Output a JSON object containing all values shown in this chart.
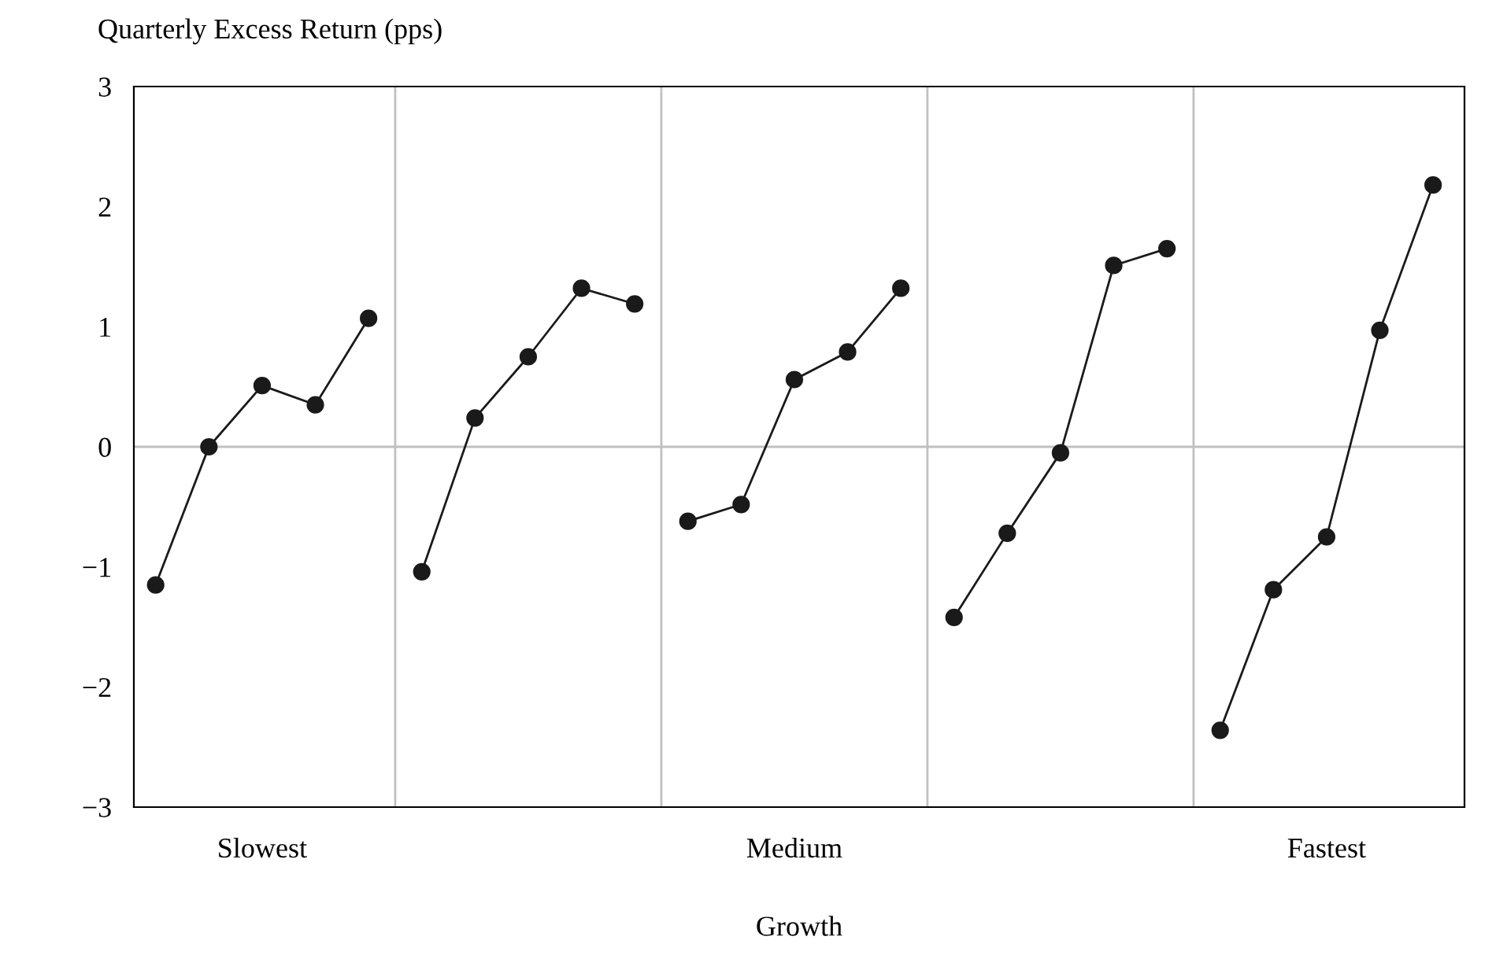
{
  "chart_data": {
    "type": "line",
    "ylabel": "Quarterly Excess Return (pps)",
    "xlabel": "Growth",
    "categories": [
      null,
      null,
      "Slowest",
      null,
      null,
      null,
      null,
      null,
      null,
      null,
      null,
      null,
      "Medium",
      null,
      null,
      null,
      null,
      null,
      null,
      null,
      null,
      null,
      "Fastest",
      null,
      null
    ],
    "ylim": [
      -3,
      3
    ],
    "yticks": [
      {
        "value": -3,
        "label": "−3"
      },
      {
        "value": -2,
        "label": "−2"
      },
      {
        "value": -1,
        "label": "−1"
      },
      0,
      1,
      2,
      3
    ],
    "series": [
      {
        "color": "#1a1a1a",
        "values": [
          -1.15,
          0.0,
          0.51,
          0.35,
          1.07,
          null,
          null,
          null,
          null,
          null,
          null,
          null,
          null,
          null,
          null,
          null,
          null,
          null,
          null,
          null,
          null,
          null,
          null,
          null,
          null
        ]
      },
      {
        "color": "#1a1a1a",
        "values": [
          null,
          null,
          null,
          null,
          null,
          -1.04,
          0.24,
          0.75,
          1.32,
          1.19,
          null,
          null,
          null,
          null,
          null,
          null,
          null,
          null,
          null,
          null,
          null,
          null,
          null,
          null,
          null
        ]
      },
      {
        "color": "#1a1a1a",
        "values": [
          null,
          null,
          null,
          null,
          null,
          null,
          null,
          null,
          null,
          null,
          -0.62,
          -0.48,
          0.56,
          0.79,
          1.32,
          null,
          null,
          null,
          null,
          null,
          null,
          null,
          null,
          null,
          null
        ]
      },
      {
        "color": "#1a1a1a",
        "values": [
          null,
          null,
          null,
          null,
          null,
          null,
          null,
          null,
          null,
          null,
          null,
          null,
          null,
          null,
          null,
          -1.42,
          -0.72,
          -0.05,
          1.51,
          1.65,
          null,
          null,
          null,
          null,
          null
        ]
      },
      {
        "color": "#1a1a1a",
        "values": [
          null,
          null,
          null,
          null,
          null,
          null,
          null,
          null,
          null,
          null,
          null,
          null,
          null,
          null,
          null,
          null,
          null,
          null,
          null,
          null,
          -2.36,
          -1.19,
          -0.75,
          0.97,
          2.18
        ]
      }
    ],
    "ref_lines": [
      {
        "axis": "y",
        "value": 0,
        "color": "#c0c0c0"
      }
    ],
    "marker": "circle",
    "line_style": "solid",
    "grid": false
  }
}
